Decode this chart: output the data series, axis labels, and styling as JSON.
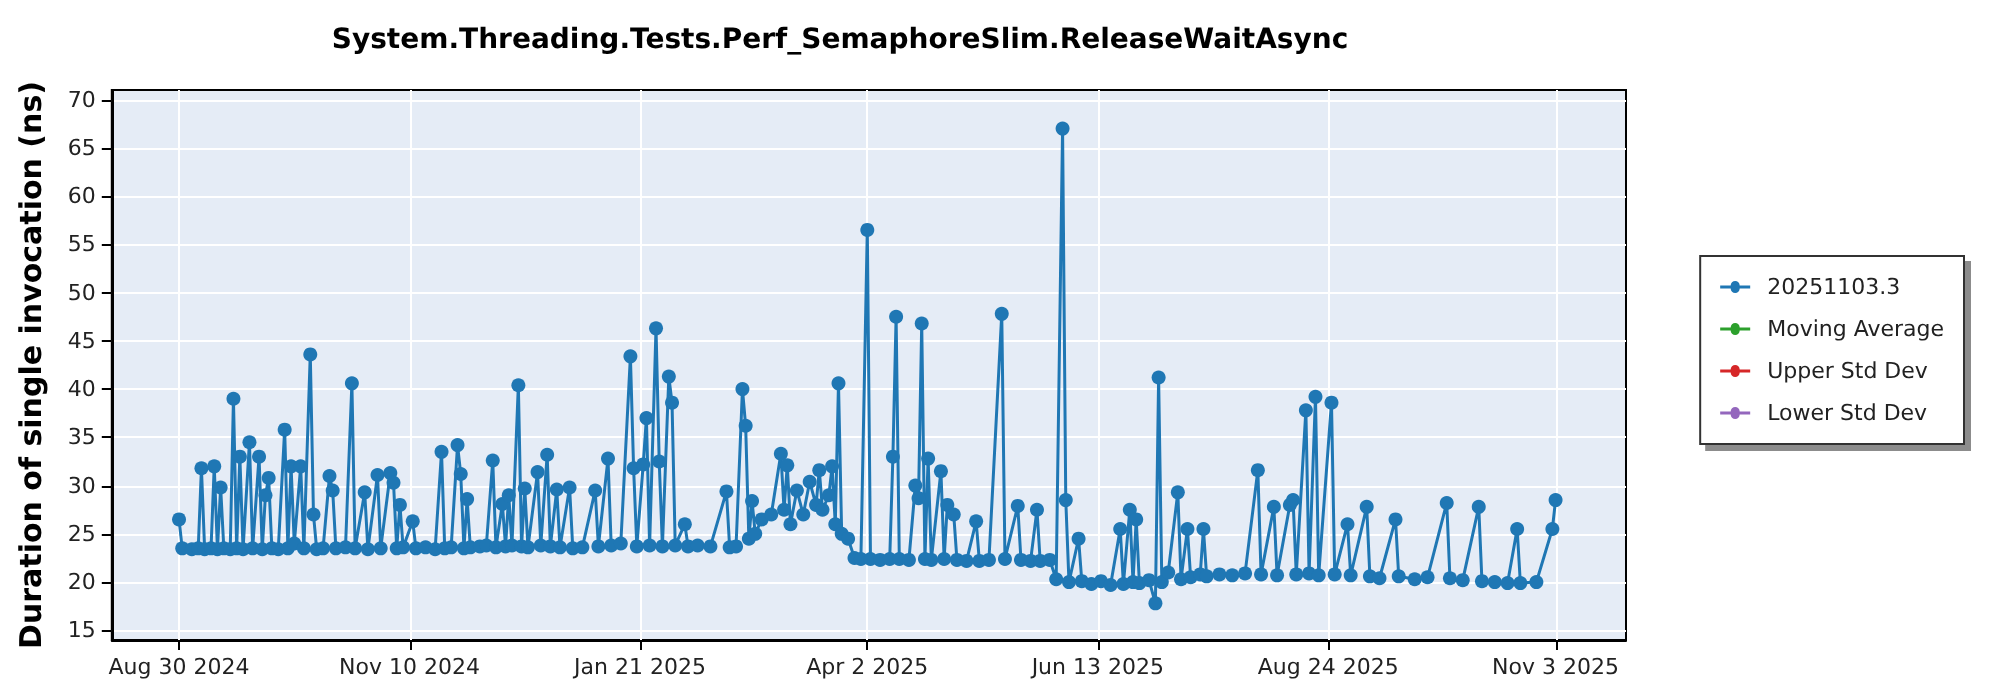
{
  "chart_data": {
    "type": "line",
    "title": "System.Threading.Tests.Perf_SemaphoreSlim.ReleaseWaitAsync",
    "ylabel": "Duration of single invocation (ns)",
    "xlim": [
      "2024-08-09",
      "2025-11-25"
    ],
    "xticks": [
      {
        "value": "2024-08-30",
        "label": "Aug 30 2024"
      },
      {
        "value": "2024-11-10",
        "label": "Nov 10 2024"
      },
      {
        "value": "2025-01-21",
        "label": "Jan 21 2025"
      },
      {
        "value": "2025-04-02",
        "label": "Apr 2 2025"
      },
      {
        "value": "2025-06-13",
        "label": "Jun 13 2025"
      },
      {
        "value": "2025-08-24",
        "label": "Aug 24 2025"
      },
      {
        "value": "2025-11-03",
        "label": "Nov 3 2025"
      }
    ],
    "ylim": [
      14,
      71
    ],
    "yticks": [
      15,
      20,
      25,
      30,
      35,
      40,
      45,
      50,
      55,
      60,
      65,
      70
    ],
    "grid": true,
    "legend": "right",
    "marker": "circle",
    "line_style": "solid",
    "series": [
      {
        "name": "20251103.3",
        "color": "#1f77b4",
        "x": [
          "2024-08-30",
          "2024-08-31",
          "2024-09-03",
          "2024-09-05",
          "2024-09-06",
          "2024-09-07",
          "2024-09-09",
          "2024-09-10",
          "2024-09-11",
          "2024-09-12",
          "2024-09-13",
          "2024-09-15",
          "2024-09-16",
          "2024-09-17",
          "2024-09-18",
          "2024-09-19",
          "2024-09-21",
          "2024-09-22",
          "2024-09-24",
          "2024-09-25",
          "2024-09-26",
          "2024-09-27",
          "2024-09-28",
          "2024-09-30",
          "2024-10-02",
          "2024-10-03",
          "2024-10-04",
          "2024-10-05",
          "2024-10-07",
          "2024-10-08",
          "2024-10-10",
          "2024-10-11",
          "2024-10-12",
          "2024-10-14",
          "2024-10-16",
          "2024-10-17",
          "2024-10-18",
          "2024-10-21",
          "2024-10-23",
          "2024-10-24",
          "2024-10-27",
          "2024-10-28",
          "2024-10-31",
          "2024-11-01",
          "2024-11-04",
          "2024-11-05",
          "2024-11-06",
          "2024-11-07",
          "2024-11-08",
          "2024-11-11",
          "2024-11-12",
          "2024-11-15",
          "2024-11-18",
          "2024-11-20",
          "2024-11-21",
          "2024-11-23",
          "2024-11-25",
          "2024-11-26",
          "2024-11-27",
          "2024-11-28",
          "2024-11-29",
          "2024-12-02",
          "2024-12-04",
          "2024-12-06",
          "2024-12-07",
          "2024-12-09",
          "2024-12-10",
          "2024-12-11",
          "2024-12-12",
          "2024-12-14",
          "2024-12-15",
          "2024-12-16",
          "2024-12-17",
          "2024-12-20",
          "2024-12-21",
          "2024-12-23",
          "2024-12-24",
          "2024-12-26",
          "2024-12-27",
          "2024-12-30",
          "2024-12-31",
          "2025-01-03",
          "2025-01-07",
          "2025-01-08",
          "2025-01-11",
          "2025-01-12",
          "2025-01-15",
          "2025-01-18",
          "2025-01-19",
          "2025-01-20",
          "2025-01-22",
          "2025-01-23",
          "2025-01-24",
          "2025-01-26",
          "2025-01-27",
          "2025-01-28",
          "2025-01-30",
          "2025-01-31",
          "2025-02-01",
          "2025-02-04",
          "2025-02-05",
          "2025-02-08",
          "2025-02-12",
          "2025-02-17",
          "2025-02-18",
          "2025-02-20",
          "2025-02-22",
          "2025-02-23",
          "2025-02-24",
          "2025-02-25",
          "2025-02-26",
          "2025-02-28",
          "2025-03-03",
          "2025-03-06",
          "2025-03-07",
          "2025-03-08",
          "2025-03-09",
          "2025-03-11",
          "2025-03-13",
          "2025-03-15",
          "2025-03-17",
          "2025-03-18",
          "2025-03-19",
          "2025-03-21",
          "2025-03-22",
          "2025-03-23",
          "2025-03-24",
          "2025-03-25",
          "2025-03-27",
          "2025-03-29",
          "2025-03-31",
          "2025-04-02",
          "2025-04-03",
          "2025-04-06",
          "2025-04-09",
          "2025-04-10",
          "2025-04-11",
          "2025-04-12",
          "2025-04-15",
          "2025-04-17",
          "2025-04-18",
          "2025-04-19",
          "2025-04-20",
          "2025-04-21",
          "2025-04-22",
          "2025-04-25",
          "2025-04-26",
          "2025-04-27",
          "2025-04-29",
          "2025-04-30",
          "2025-05-03",
          "2025-05-06",
          "2025-05-07",
          "2025-05-10",
          "2025-05-14",
          "2025-05-15",
          "2025-05-19",
          "2025-05-20",
          "2025-05-23",
          "2025-05-25",
          "2025-05-26",
          "2025-05-29",
          "2025-05-31",
          "2025-06-02",
          "2025-06-03",
          "2025-06-04",
          "2025-06-07",
          "2025-06-08",
          "2025-06-11",
          "2025-06-14",
          "2025-06-17",
          "2025-06-20",
          "2025-06-21",
          "2025-06-23",
          "2025-06-24",
          "2025-06-25",
          "2025-06-26",
          "2025-06-29",
          "2025-07-01",
          "2025-07-02",
          "2025-07-03",
          "2025-07-05",
          "2025-07-08",
          "2025-07-09",
          "2025-07-11",
          "2025-07-12",
          "2025-07-15",
          "2025-07-16",
          "2025-07-17",
          "2025-07-21",
          "2025-07-25",
          "2025-07-29",
          "2025-08-02",
          "2025-08-03",
          "2025-08-07",
          "2025-08-08",
          "2025-08-12",
          "2025-08-13",
          "2025-08-14",
          "2025-08-17",
          "2025-08-18",
          "2025-08-20",
          "2025-08-21",
          "2025-08-25",
          "2025-08-26",
          "2025-08-30",
          "2025-08-31",
          "2025-09-05",
          "2025-09-06",
          "2025-09-09",
          "2025-09-14",
          "2025-09-15",
          "2025-09-20",
          "2025-09-24",
          "2025-09-30",
          "2025-10-01",
          "2025-10-05",
          "2025-10-10",
          "2025-10-11",
          "2025-10-15",
          "2025-10-19",
          "2025-10-22",
          "2025-10-23",
          "2025-10-28",
          "2025-11-02",
          "2025-11-03"
        ],
        "values": [
          26.5,
          23.5,
          23.4,
          23.5,
          31.8,
          23.4,
          23.5,
          32.0,
          23.4,
          29.8,
          23.5,
          23.4,
          39.0,
          23.5,
          33.0,
          23.4,
          34.5,
          23.5,
          33.0,
          23.4,
          29.0,
          30.8,
          23.5,
          23.4,
          35.8,
          23.5,
          32.0,
          24.0,
          32.0,
          23.5,
          43.6,
          27.0,
          23.4,
          23.5,
          31.0,
          29.5,
          23.5,
          23.6,
          40.6,
          23.5,
          29.3,
          23.4,
          31.1,
          23.5,
          31.3,
          30.3,
          23.5,
          28.0,
          23.6,
          26.3,
          23.5,
          23.6,
          23.4,
          33.5,
          23.5,
          23.6,
          34.2,
          31.2,
          23.5,
          28.6,
          23.6,
          23.7,
          23.8,
          32.6,
          23.6,
          28.1,
          23.7,
          29.0,
          23.8,
          40.4,
          23.7,
          29.7,
          23.6,
          31.4,
          23.8,
          33.2,
          23.7,
          29.6,
          23.6,
          29.8,
          23.5,
          23.6,
          29.5,
          23.7,
          32.8,
          23.8,
          24.0,
          43.4,
          31.8,
          23.7,
          32.2,
          37.0,
          23.8,
          46.3,
          32.5,
          23.7,
          41.3,
          38.6,
          23.8,
          26.0,
          23.7,
          23.8,
          23.7,
          29.4,
          23.6,
          23.7,
          40.0,
          36.2,
          24.5,
          28.4,
          25.0,
          26.5,
          27.0,
          33.3,
          27.5,
          32.1,
          26.0,
          29.5,
          27.0,
          30.4,
          28.0,
          31.6,
          27.5,
          29.0,
          32.0,
          26.0,
          40.6,
          25.0,
          24.5,
          22.5,
          22.4,
          56.5,
          22.4,
          22.3,
          22.4,
          33.0,
          47.5,
          22.4,
          22.3,
          30.0,
          28.7,
          46.8,
          22.4,
          32.8,
          22.3,
          31.5,
          22.4,
          28.0,
          27.0,
          22.3,
          22.2,
          26.3,
          22.2,
          22.3,
          47.8,
          22.4,
          27.9,
          22.3,
          22.2,
          27.5,
          22.2,
          22.3,
          20.3,
          67.0,
          28.5,
          20.0,
          24.5,
          20.1,
          19.8,
          20.1,
          19.7,
          25.5,
          19.8,
          27.5,
          20.0,
          26.5,
          19.9,
          20.2,
          17.8,
          41.2,
          20.0,
          21.0,
          29.3,
          20.3,
          25.5,
          20.5,
          20.8,
          25.5,
          20.6,
          20.8,
          20.7,
          20.9,
          31.6,
          20.8,
          27.8,
          20.7,
          28.0,
          28.5,
          20.8,
          37.8,
          20.9,
          39.2,
          20.7,
          38.6,
          20.8,
          26.0,
          20.7,
          27.8,
          20.6,
          20.4,
          26.5,
          20.6,
          20.3,
          20.5,
          28.2,
          20.4,
          20.2,
          27.8,
          20.1,
          20.0,
          19.9,
          25.5,
          19.9,
          20.0,
          25.5,
          28.5
        ]
      },
      {
        "name": "Moving Average",
        "color": "#2ca02c"
      },
      {
        "name": "Upper Std Dev",
        "color": "#d62728"
      },
      {
        "name": "Lower Std Dev",
        "color": "#9467bd"
      }
    ]
  }
}
